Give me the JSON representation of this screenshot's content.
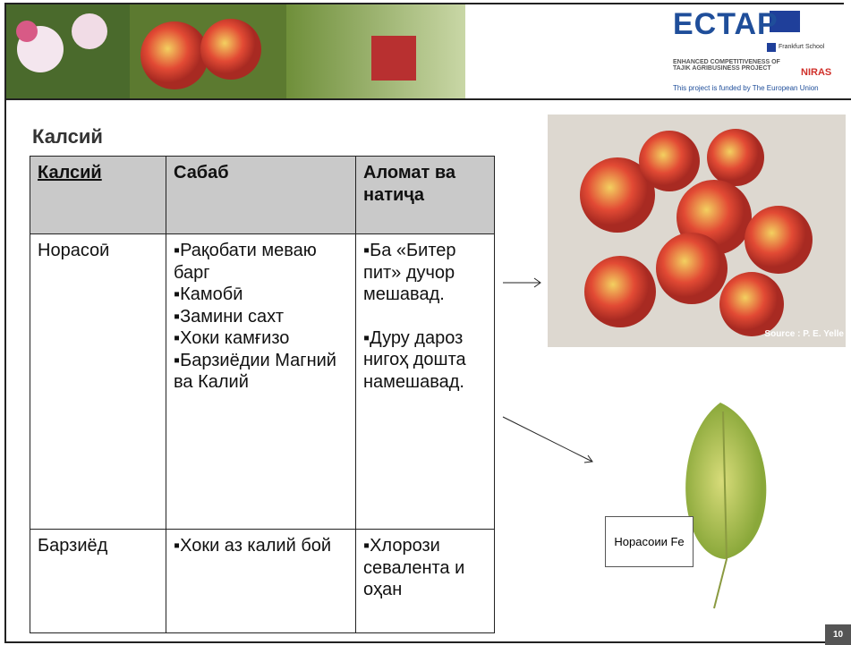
{
  "header": {
    "logo": "ECTAP",
    "project": "ENHANCED COMPETITIVENESS OF TAJIK AGRIBUSINESS PROJECT",
    "funding": "This project is funded by The European Union",
    "partner_1": "Frankfurt School",
    "partner_2": "NIRAS"
  },
  "title": "Калсий",
  "table": {
    "header": [
      "Калсий",
      "Сабаб",
      "Аломат ва натиҷа"
    ],
    "rows": [
      [
        "Норасоӣ",
        [
          "Рақобати меваю барг",
          "Камобӣ",
          "Замини сахт",
          "Хоки камғизо",
          "Барзиёдии Магний ва Калий"
        ],
        [
          "Ба «Битер пит» дучор мешавад.",
          "Дуру дароз нигоҳ дошта намешавад."
        ]
      ],
      [
        "Барзиёд",
        [
          "Хоки аз калий бой"
        ],
        [
          "Хлорози севалента и оҳан"
        ]
      ]
    ]
  },
  "images": [
    {
      "caption": "Source : P. E. Yelle"
    },
    {
      "label": "Норасоии Fe"
    }
  ],
  "page_number": 10
}
